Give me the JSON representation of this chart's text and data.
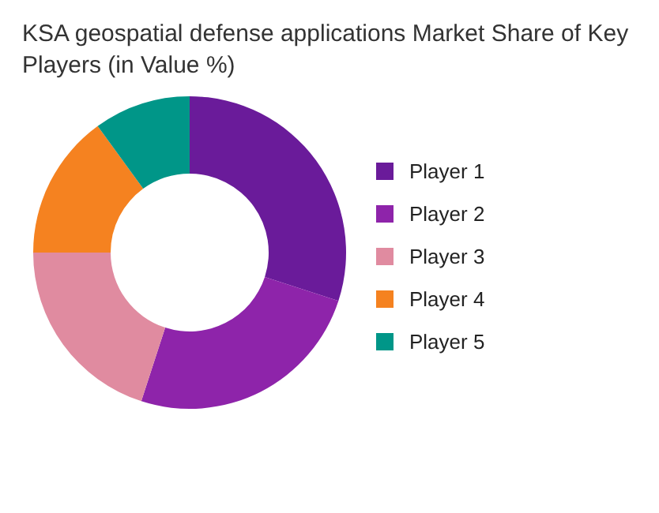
{
  "chart_data": {
    "type": "donut",
    "title": "KSA geospatial defense applications Market Share of Key Players (in Value %)",
    "categories": [
      "Player 1",
      "Player 2",
      "Player 3",
      "Player 4",
      "Player 5"
    ],
    "values": [
      30,
      25,
      20,
      15,
      10
    ],
    "colors": [
      "#6a1b9a",
      "#8e24aa",
      "#e08ba0",
      "#f58220",
      "#009688"
    ],
    "legend": "right"
  }
}
